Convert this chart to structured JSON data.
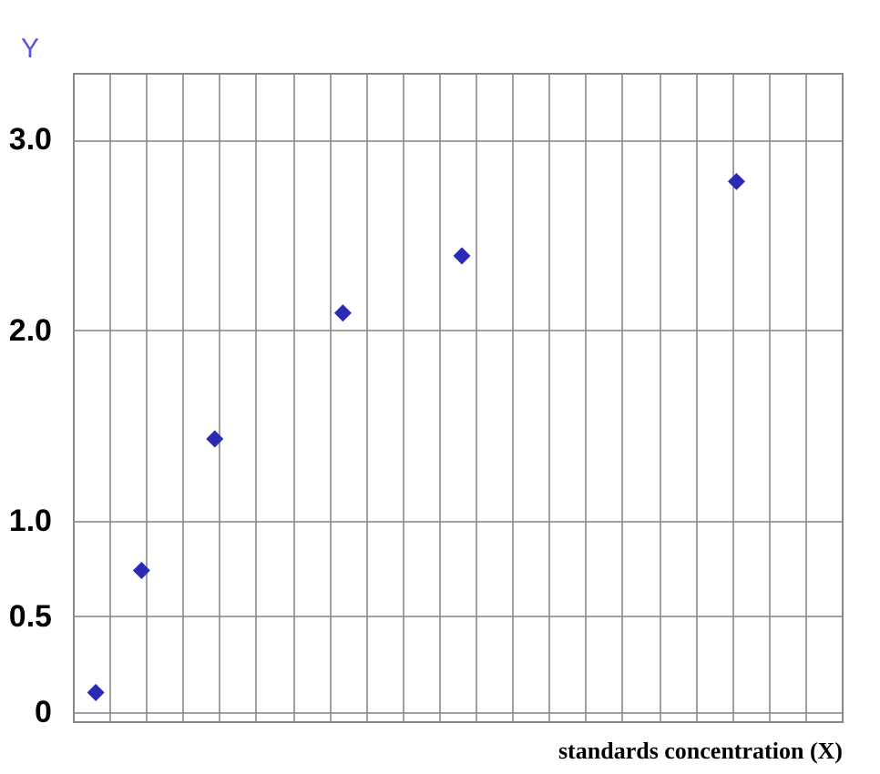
{
  "chart_data": {
    "type": "scatter",
    "xlabel": "standards concentration (X)",
    "ylabel": "Y",
    "tick_labels": "y",
    "marker": "diamond",
    "grid": true,
    "categories": [
      null,
      null,
      null,
      null,
      null,
      null,
      null,
      null,
      null,
      null,
      null,
      null,
      null,
      null,
      null,
      null,
      null,
      null,
      null,
      null,
      null,
      null,
      null,
      null,
      null,
      null,
      null,
      null,
      null,
      null,
      null,
      null,
      null,
      null,
      null,
      null,
      null,
      null,
      null,
      null,
      null,
      null,
      null,
      null,
      null,
      null,
      null,
      null,
      null,
      null,
      null,
      null,
      null,
      null,
      null,
      null,
      null,
      null,
      null,
      null,
      null,
      null,
      null,
      null,
      null,
      null,
      null,
      null,
      null,
      null,
      null,
      null,
      null,
      null,
      null,
      null,
      null,
      null,
      null,
      null,
      null,
      null,
      null,
      null
    ],
    "series": [
      {
        "color": "#2a2ab4",
        "values": [
          null,
          null,
          0.1,
          null,
          null,
          null,
          null,
          0.74,
          null,
          null,
          null,
          null,
          null,
          null,
          null,
          1.43,
          null,
          null,
          null,
          null,
          null,
          null,
          null,
          null,
          null,
          null,
          null,
          null,
          null,
          2.09,
          null,
          null,
          null,
          null,
          null,
          null,
          null,
          null,
          null,
          null,
          null,
          null,
          2.39,
          null,
          null,
          null,
          null,
          null,
          null,
          null,
          null,
          null,
          null,
          null,
          null,
          null,
          null,
          null,
          null,
          null,
          null,
          null,
          null,
          null,
          null,
          null,
          null,
          null,
          null,
          null,
          null,
          null,
          2.78,
          null,
          null,
          null,
          null,
          null,
          null,
          null,
          null,
          null,
          null,
          null
        ]
      }
    ],
    "ylim": [
      -0.05,
      3.35
    ],
    "yticks": [
      0,
      0.5,
      {
        "value": 1,
        "label": "1.0"
      },
      {
        "value": 2,
        "label": "2.0"
      },
      {
        "value": 3,
        "label": "3.0"
      }
    ]
  }
}
